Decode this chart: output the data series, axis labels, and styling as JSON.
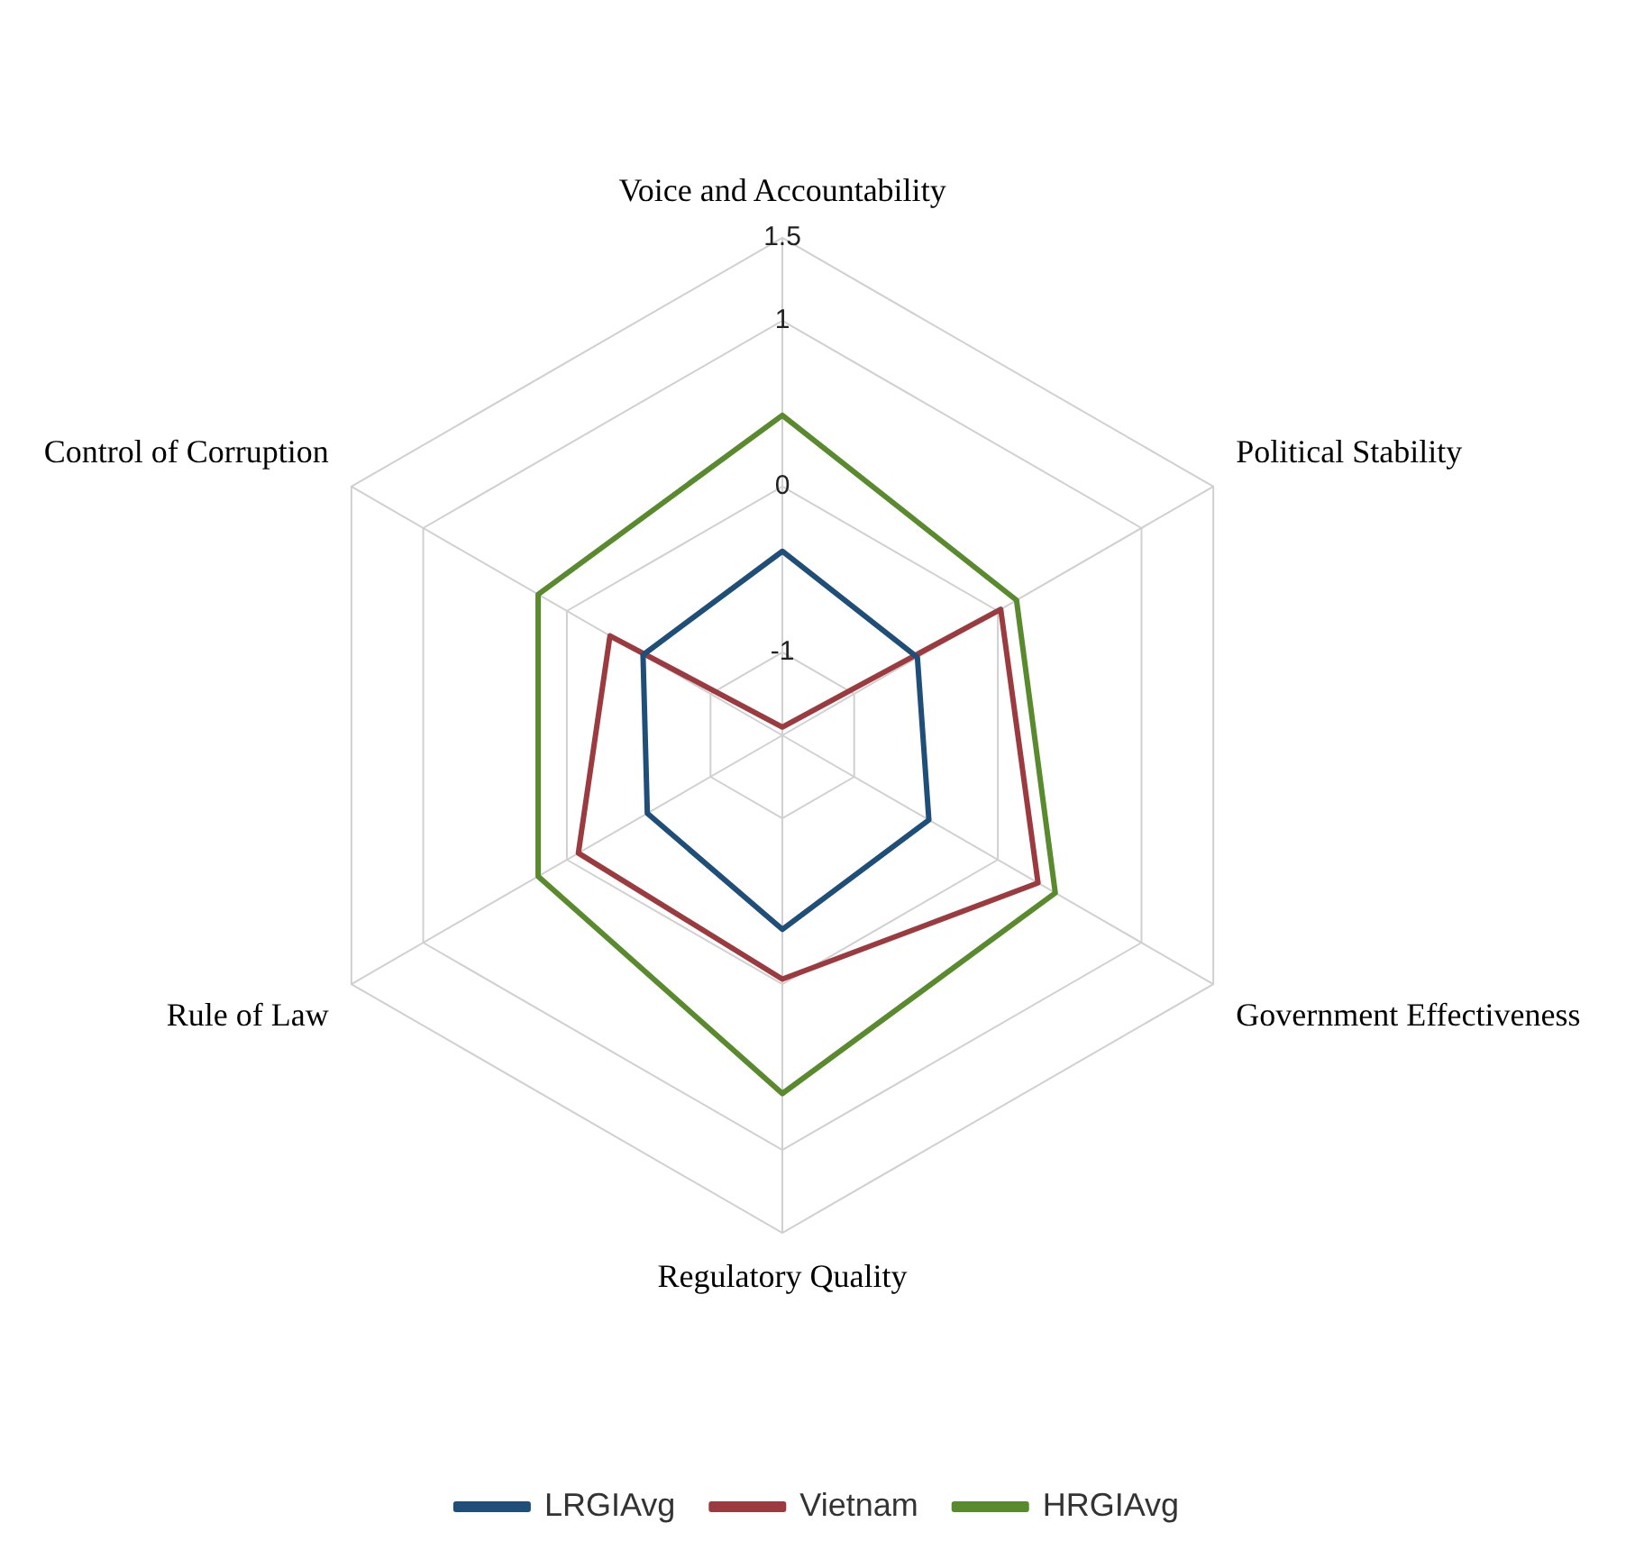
{
  "chart_data": {
    "type": "radar",
    "categories": [
      "Voice and Accountability",
      "Political Stability",
      "Government Effectiveness",
      "Regulatory Quality",
      "Rule of Law",
      "Control of Corruption"
    ],
    "series": [
      {
        "name": "LRGIAvg",
        "color": "#1f4e79",
        "values": [
          -0.39,
          -0.56,
          -0.48,
          -0.33,
          -0.56,
          -0.53
        ]
      },
      {
        "name": "Vietnam",
        "color": "#9b3b3f",
        "values": [
          -1.45,
          0.02,
          0.28,
          -0.03,
          -0.08,
          -0.3
        ]
      },
      {
        "name": "HRGIAvg",
        "color": "#5a8a2e",
        "values": [
          0.43,
          0.13,
          0.4,
          0.66,
          0.2,
          0.2
        ]
      }
    ],
    "ylim": [
      -1.5,
      1.5
    ],
    "yticks": [
      -1,
      0,
      1,
      1.5
    ],
    "grid": true,
    "legend": "bottom",
    "marker": "none",
    "line_style": "solid"
  }
}
